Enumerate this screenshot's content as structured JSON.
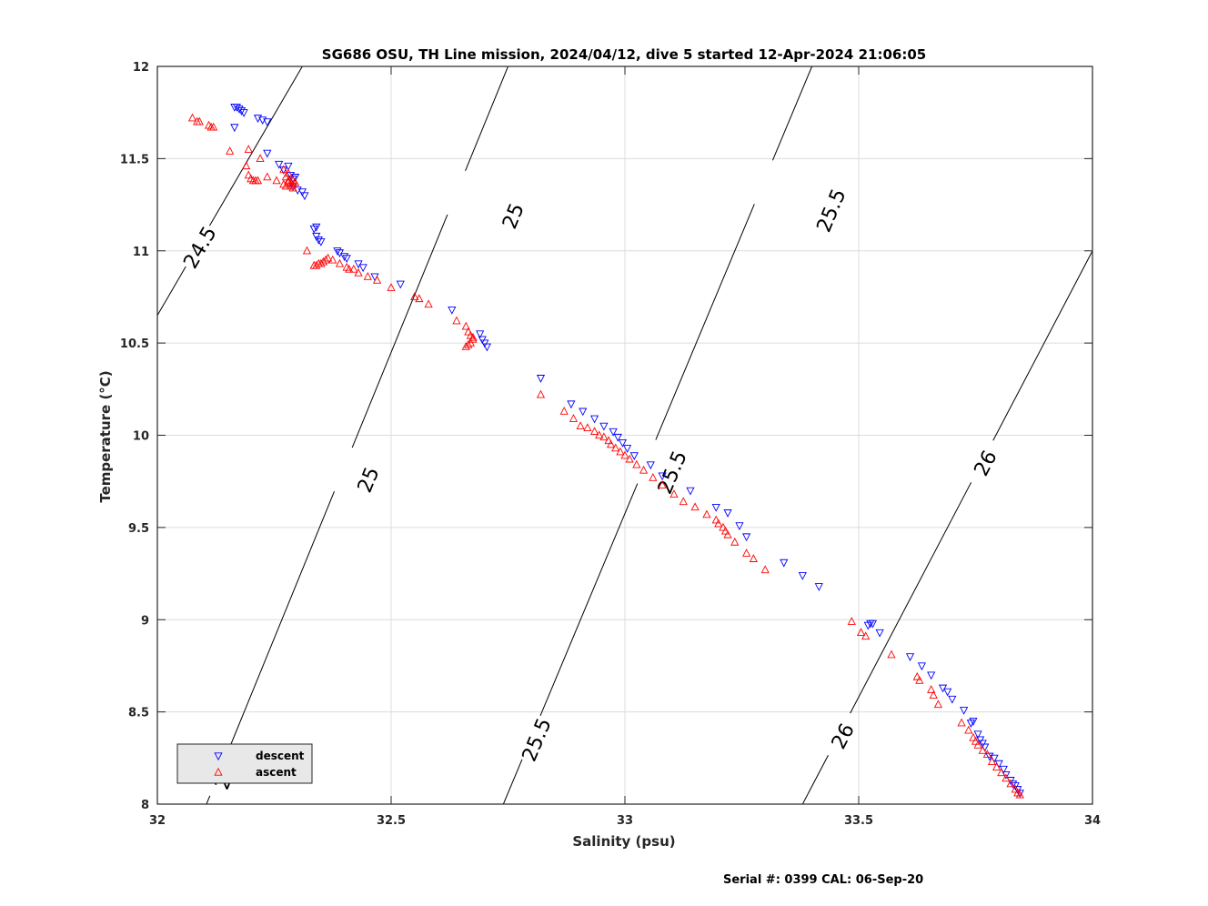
{
  "chart_data": {
    "type": "scatter",
    "title": "SG686 OSU, TH Line mission, 2024/04/12, dive 5 started 12-Apr-2024 21:06:05",
    "xlabel": "Salinity (psu)",
    "ylabel": "Temperature (°C)",
    "xlim": [
      32,
      34
    ],
    "ylim": [
      8,
      12
    ],
    "xticks": [
      "32",
      "32.5",
      "33",
      "33.5",
      "34"
    ],
    "yticks": [
      "8",
      "8.5",
      "9",
      "9.5",
      "10",
      "10.5",
      "11",
      "11.5",
      "12"
    ],
    "grid": true,
    "legend_position": "bottom-left",
    "series": [
      {
        "name": "descent",
        "color": "#0000ff",
        "marker": "triangle-down",
        "points": [
          [
            32.165,
            11.78
          ],
          [
            32.17,
            11.78
          ],
          [
            32.175,
            11.77
          ],
          [
            32.18,
            11.76
          ],
          [
            32.185,
            11.75
          ],
          [
            32.165,
            11.67
          ],
          [
            32.215,
            11.72
          ],
          [
            32.225,
            11.71
          ],
          [
            32.235,
            11.7
          ],
          [
            32.235,
            11.53
          ],
          [
            32.26,
            11.47
          ],
          [
            32.27,
            11.44
          ],
          [
            32.28,
            11.46
          ],
          [
            32.285,
            11.41
          ],
          [
            32.29,
            11.39
          ],
          [
            32.29,
            11.35
          ],
          [
            32.295,
            11.4
          ],
          [
            32.3,
            11.33
          ],
          [
            32.31,
            11.32
          ],
          [
            32.315,
            11.3
          ],
          [
            32.335,
            11.12
          ],
          [
            32.34,
            11.13
          ],
          [
            32.34,
            11.08
          ],
          [
            32.345,
            11.06
          ],
          [
            32.35,
            11.05
          ],
          [
            32.385,
            11.0
          ],
          [
            32.39,
            10.99
          ],
          [
            32.4,
            10.97
          ],
          [
            32.405,
            10.96
          ],
          [
            32.43,
            10.93
          ],
          [
            32.44,
            10.91
          ],
          [
            32.465,
            10.86
          ],
          [
            32.52,
            10.82
          ],
          [
            32.63,
            10.68
          ],
          [
            32.69,
            10.55
          ],
          [
            32.695,
            10.52
          ],
          [
            32.7,
            10.5
          ],
          [
            32.705,
            10.48
          ],
          [
            32.82,
            10.31
          ],
          [
            32.885,
            10.17
          ],
          [
            32.91,
            10.13
          ],
          [
            32.935,
            10.09
          ],
          [
            32.955,
            10.05
          ],
          [
            32.975,
            10.02
          ],
          [
            32.985,
            9.99
          ],
          [
            32.995,
            9.96
          ],
          [
            33.005,
            9.93
          ],
          [
            33.02,
            9.89
          ],
          [
            33.055,
            9.84
          ],
          [
            33.08,
            9.78
          ],
          [
            33.14,
            9.7
          ],
          [
            33.195,
            9.61
          ],
          [
            33.22,
            9.58
          ],
          [
            33.245,
            9.51
          ],
          [
            33.26,
            9.45
          ],
          [
            33.34,
            9.31
          ],
          [
            33.38,
            9.24
          ],
          [
            33.415,
            9.18
          ],
          [
            33.52,
            8.97
          ],
          [
            33.525,
            8.98
          ],
          [
            33.53,
            8.98
          ],
          [
            33.545,
            8.93
          ],
          [
            33.61,
            8.8
          ],
          [
            33.635,
            8.75
          ],
          [
            33.655,
            8.7
          ],
          [
            33.68,
            8.63
          ],
          [
            33.69,
            8.61
          ],
          [
            33.7,
            8.57
          ],
          [
            33.725,
            8.51
          ],
          [
            33.74,
            8.44
          ],
          [
            33.745,
            8.45
          ],
          [
            33.755,
            8.38
          ],
          [
            33.76,
            8.35
          ],
          [
            33.765,
            8.33
          ],
          [
            33.77,
            8.31
          ],
          [
            33.78,
            8.26
          ],
          [
            33.79,
            8.25
          ],
          [
            33.8,
            8.22
          ],
          [
            33.81,
            8.19
          ],
          [
            33.815,
            8.16
          ],
          [
            33.825,
            8.13
          ],
          [
            33.83,
            8.11
          ],
          [
            33.835,
            8.1
          ],
          [
            33.84,
            8.08
          ],
          [
            33.845,
            8.06
          ]
        ]
      },
      {
        "name": "ascent",
        "color": "#ff0000",
        "marker": "triangle-up",
        "points": [
          [
            32.075,
            11.72
          ],
          [
            32.085,
            11.7
          ],
          [
            32.09,
            11.7
          ],
          [
            32.11,
            11.68
          ],
          [
            32.115,
            11.67
          ],
          [
            32.12,
            11.67
          ],
          [
            32.155,
            11.54
          ],
          [
            32.19,
            11.46
          ],
          [
            32.195,
            11.41
          ],
          [
            32.2,
            11.39
          ],
          [
            32.205,
            11.38
          ],
          [
            32.21,
            11.38
          ],
          [
            32.215,
            11.38
          ],
          [
            32.195,
            11.55
          ],
          [
            32.22,
            11.5
          ],
          [
            32.235,
            11.4
          ],
          [
            32.255,
            11.38
          ],
          [
            32.27,
            11.36
          ],
          [
            32.275,
            11.35
          ],
          [
            32.28,
            11.37
          ],
          [
            32.285,
            11.35
          ],
          [
            32.29,
            11.34
          ],
          [
            32.27,
            11.44
          ],
          [
            32.28,
            11.42
          ],
          [
            32.275,
            11.4
          ],
          [
            32.28,
            11.38
          ],
          [
            32.285,
            11.37
          ],
          [
            32.29,
            11.36
          ],
          [
            32.295,
            11.37
          ],
          [
            32.29,
            11.38
          ],
          [
            32.32,
            11.0
          ],
          [
            32.335,
            10.92
          ],
          [
            32.34,
            10.92
          ],
          [
            32.345,
            10.93
          ],
          [
            32.35,
            10.93
          ],
          [
            32.355,
            10.94
          ],
          [
            32.36,
            10.95
          ],
          [
            32.365,
            10.96
          ],
          [
            32.375,
            10.95
          ],
          [
            32.39,
            10.93
          ],
          [
            32.405,
            10.91
          ],
          [
            32.41,
            10.9
          ],
          [
            32.42,
            10.9
          ],
          [
            32.43,
            10.88
          ],
          [
            32.45,
            10.86
          ],
          [
            32.47,
            10.84
          ],
          [
            32.5,
            10.8
          ],
          [
            32.55,
            10.75
          ],
          [
            32.56,
            10.74
          ],
          [
            32.58,
            10.71
          ],
          [
            32.64,
            10.62
          ],
          [
            32.66,
            10.59
          ],
          [
            32.665,
            10.56
          ],
          [
            32.67,
            10.54
          ],
          [
            32.675,
            10.52
          ],
          [
            32.67,
            10.5
          ],
          [
            32.665,
            10.49
          ],
          [
            32.66,
            10.48
          ],
          [
            32.675,
            10.53
          ],
          [
            32.82,
            10.22
          ],
          [
            32.87,
            10.13
          ],
          [
            32.89,
            10.09
          ],
          [
            32.905,
            10.05
          ],
          [
            32.92,
            10.04
          ],
          [
            32.935,
            10.02
          ],
          [
            32.945,
            10.0
          ],
          [
            32.955,
            9.99
          ],
          [
            32.965,
            9.97
          ],
          [
            32.97,
            9.95
          ],
          [
            32.98,
            9.93
          ],
          [
            32.99,
            9.91
          ],
          [
            33.0,
            9.89
          ],
          [
            33.01,
            9.87
          ],
          [
            33.025,
            9.84
          ],
          [
            33.04,
            9.81
          ],
          [
            33.06,
            9.77
          ],
          [
            33.08,
            9.73
          ],
          [
            33.105,
            9.68
          ],
          [
            33.125,
            9.64
          ],
          [
            33.15,
            9.61
          ],
          [
            33.175,
            9.57
          ],
          [
            33.195,
            9.54
          ],
          [
            33.2,
            9.52
          ],
          [
            33.21,
            9.5
          ],
          [
            33.215,
            9.48
          ],
          [
            33.22,
            9.46
          ],
          [
            33.235,
            9.42
          ],
          [
            33.26,
            9.36
          ],
          [
            33.275,
            9.33
          ],
          [
            33.3,
            9.27
          ],
          [
            33.485,
            8.99
          ],
          [
            33.505,
            8.93
          ],
          [
            33.515,
            8.91
          ],
          [
            33.57,
            8.81
          ],
          [
            33.625,
            8.69
          ],
          [
            33.63,
            8.67
          ],
          [
            33.655,
            8.62
          ],
          [
            33.66,
            8.59
          ],
          [
            33.67,
            8.54
          ],
          [
            33.72,
            8.44
          ],
          [
            33.735,
            8.4
          ],
          [
            33.745,
            8.36
          ],
          [
            33.75,
            8.34
          ],
          [
            33.755,
            8.32
          ],
          [
            33.765,
            8.29
          ],
          [
            33.775,
            8.27
          ],
          [
            33.785,
            8.23
          ],
          [
            33.795,
            8.2
          ],
          [
            33.805,
            8.17
          ],
          [
            33.815,
            8.14
          ],
          [
            33.825,
            8.11
          ],
          [
            33.835,
            8.08
          ],
          [
            33.84,
            8.06
          ],
          [
            33.845,
            8.05
          ]
        ]
      }
    ],
    "contours": [
      {
        "label": "24.5",
        "points": [
          [
            32.0,
            10.65
          ],
          [
            32.31,
            12.0
          ]
        ],
        "label_at": [
          [
            32.09,
            11.02
          ]
        ]
      },
      {
        "label": "25",
        "points": [
          [
            32.105,
            8.0
          ],
          [
            32.75,
            12.0
          ]
        ],
        "label_at": [
          [
            32.145,
            8.15
          ],
          [
            32.45,
            9.76
          ],
          [
            32.76,
            11.19
          ]
        ]
      },
      {
        "label": "25.5",
        "points": [
          [
            32.74,
            8.0
          ],
          [
            33.4,
            12.0
          ]
        ],
        "label_at": [
          [
            32.81,
            8.35
          ],
          [
            33.1,
            9.8
          ],
          [
            33.44,
            11.22
          ]
        ]
      },
      {
        "label": "26",
        "points": [
          [
            33.38,
            8.0
          ],
          [
            34.0,
            11.0
          ]
        ],
        "label_at": [
          [
            33.465,
            8.37
          ],
          [
            33.77,
            9.85
          ]
        ]
      }
    ],
    "legend": [
      {
        "label": "descent",
        "series": "descent"
      },
      {
        "label": "ascent",
        "series": "ascent"
      }
    ]
  },
  "footer": "Serial #: 0399  CAL: 06-Sep-20"
}
